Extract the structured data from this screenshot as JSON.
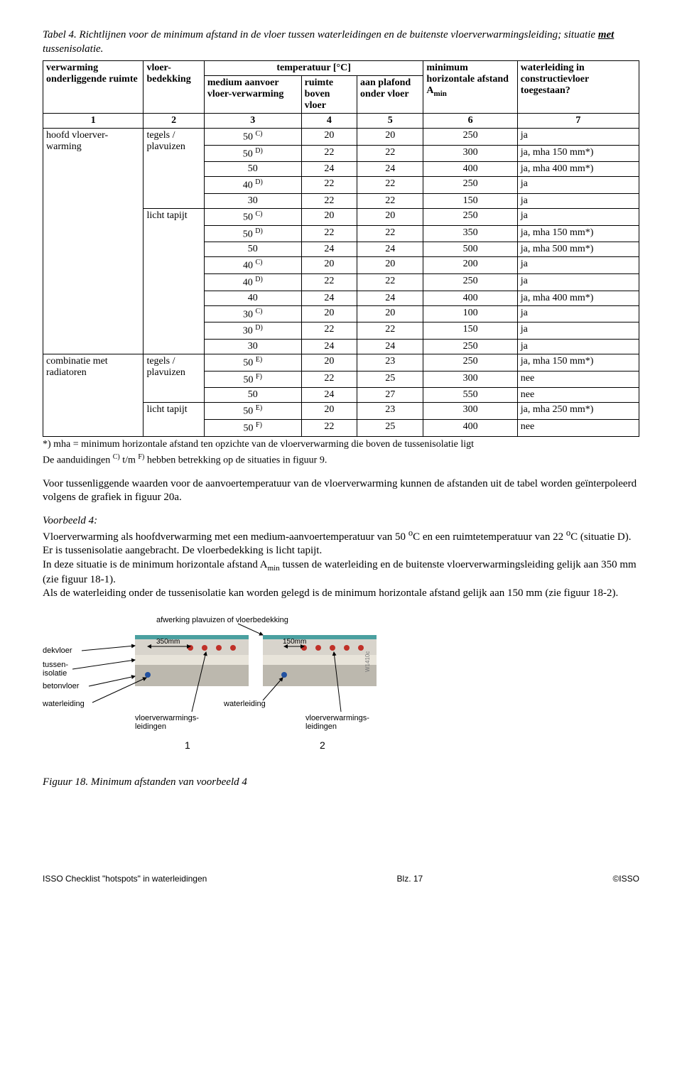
{
  "title": {
    "prefix": "Tabel 4. Richtlijnen voor de minimum afstand in de vloer tussen waterleidingen en de buitenste vloerverwarmingsleiding; situatie ",
    "emph": "met",
    "suffix": " tussenisolatie."
  },
  "headers": {
    "col1": "verwarming onderliggende ruimte",
    "col2": "vloer-bedekking",
    "tempGroup": "temperatuur [°C]",
    "col3": "medium aanvoer vloer-verwarming",
    "col4": "ruimte boven vloer",
    "col5": "aan plafond onder vloer",
    "col6_a": "minimum horizontale afstand A",
    "col6_b": "min",
    "col7": "waterleiding in constructievloer toegestaan?",
    "n1": "1",
    "n2": "2",
    "n3": "3",
    "n4": "4",
    "n5": "5",
    "n6": "6",
    "n7": "7"
  },
  "groups": [
    {
      "cat": "hoofd vloerver-warming",
      "subs": [
        {
          "bedekking": "tegels / plavuizen",
          "rows": [
            {
              "t": "50",
              "s": "C)",
              "c4": "20",
              "c5": "20",
              "c6": "250",
              "c7": "ja"
            },
            {
              "t": "50",
              "s": "D)",
              "c4": "22",
              "c5": "22",
              "c6": "300",
              "c7": "ja, mha 150 mm*)"
            },
            {
              "t": "50",
              "s": "",
              "c4": "24",
              "c5": "24",
              "c6": "400",
              "c7": "ja, mha 400 mm*)"
            },
            {
              "t": "40",
              "s": "D)",
              "c4": "22",
              "c5": "22",
              "c6": "250",
              "c7": "ja"
            },
            {
              "t": "30",
              "s": "",
              "c4": "22",
              "c5": "22",
              "c6": "150",
              "c7": "ja"
            }
          ]
        },
        {
          "bedekking": "licht tapijt",
          "rows": [
            {
              "t": "50",
              "s": "C)",
              "c4": "20",
              "c5": "20",
              "c6": "250",
              "c7": "ja"
            },
            {
              "t": "50",
              "s": "D)",
              "c4": "22",
              "c5": "22",
              "c6": "350",
              "c7": "ja, mha 150 mm*)"
            },
            {
              "t": "50",
              "s": "",
              "c4": "24",
              "c5": "24",
              "c6": "500",
              "c7": "ja, mha 500 mm*)"
            },
            {
              "t": "40",
              "s": "C)",
              "c4": "20",
              "c5": "20",
              "c6": "200",
              "c7": "ja"
            },
            {
              "t": "40",
              "s": "D)",
              "c4": "22",
              "c5": "22",
              "c6": "250",
              "c7": "ja"
            },
            {
              "t": "40",
              "s": "",
              "c4": "24",
              "c5": "24",
              "c6": "400",
              "c7": "ja, mha 400 mm*)"
            },
            {
              "t": "30",
              "s": "C)",
              "c4": "20",
              "c5": "20",
              "c6": "100",
              "c7": "ja"
            },
            {
              "t": "30",
              "s": "D)",
              "c4": "22",
              "c5": "22",
              "c6": "150",
              "c7": "ja"
            },
            {
              "t": "30",
              "s": "",
              "c4": "24",
              "c5": "24",
              "c6": "250",
              "c7": "ja"
            }
          ]
        }
      ]
    },
    {
      "cat": "combinatie met radiatoren",
      "subs": [
        {
          "bedekking": "tegels / plavuizen",
          "rows": [
            {
              "t": "50",
              "s": "E)",
              "c4": "20",
              "c5": "23",
              "c6": "250",
              "c7": "ja, mha 150 mm*)"
            },
            {
              "t": "50",
              "s": "F)",
              "c4": "22",
              "c5": "25",
              "c6": "300",
              "c7": "nee"
            },
            {
              "t": "50",
              "s": "",
              "c4": "24",
              "c5": "27",
              "c6": "550",
              "c7": "nee"
            }
          ]
        },
        {
          "bedekking": "licht tapijt",
          "rows": [
            {
              "t": "50",
              "s": "E)",
              "c4": "20",
              "c5": "23",
              "c6": "300",
              "c7": "ja, mha 250 mm*)"
            },
            {
              "t": "50",
              "s": "F)",
              "c4": "22",
              "c5": "25",
              "c6": "400",
              "c7": "nee"
            }
          ]
        }
      ]
    }
  ],
  "footnote1": "*) mha = minimum horizontale afstand ten opzichte van de vloerverwarming die boven de tussenisolatie ligt",
  "footnote2_a": "De aanduidingen ",
  "footnote2_b": "C)",
  "footnote2_c": " t/m ",
  "footnote2_d": "F)",
  "footnote2_e": " hebben betrekking op de situaties in figuur 9.",
  "para1": "Voor tussenliggende waarden voor de aanvoertemperatuur van de vloerverwarming kunnen de afstanden uit de tabel worden geïnterpoleerd volgens de grafiek in figuur 20a.",
  "voorbeeld_h": "Voorbeeld 4:",
  "para2a": "Vloerverwarming als hoofdverwarming met een medium-aanvoertemperatuur van 50 ",
  "para2b": "C en een ruimtetemperatuur van 22 ",
  "para2c": "C (situatie D). Er is tussenisolatie aangebracht. De vloerbedekking is licht tapijt.",
  "para3a": "In deze situatie is de minimum horizontale afstand A",
  "para3b": " tussen de waterleiding en de buitenste vloerverwarmingsleiding gelijk aan 350 mm (zie figuur 18-1).",
  "para4": "Als de waterleiding onder de tussenisolatie kan worden gelegd is de minimum horizontale afstand gelijk aan 150 mm (zie figuur 18-2).",
  "diagram": {
    "topLabel": "afwerking plavuizen of vloerbedekking",
    "m350": "350mm",
    "m150": "150mm",
    "dekvloer": "dekvloer",
    "tussen": "tussen-\nisolatie",
    "beton": "betonvloer",
    "waterleiding": "waterleiding",
    "waterleidingR": "waterleiding",
    "vloerv1": "vloerverwarmings-\nleidingen",
    "vloerv2": "vloerverwarmings-\nleidingen",
    "n1": "1",
    "n2": "2",
    "id": "W1410c",
    "colors": {
      "surface": "#4aa0a0",
      "dekvloer": "#d8d4cc",
      "isolatie": "#e8e4da",
      "beton": "#bcb8ae",
      "pipeRed": "#c03028",
      "pipeBlue": "#2050a0",
      "line": "#000000"
    }
  },
  "caption": "Figuur 18. Minimum afstanden van voorbeeld 4",
  "footer": {
    "left": "ISSO Checklist \"hotspots\" in waterleidingen",
    "mid": "Blz. 17",
    "right": "©ISSO"
  }
}
